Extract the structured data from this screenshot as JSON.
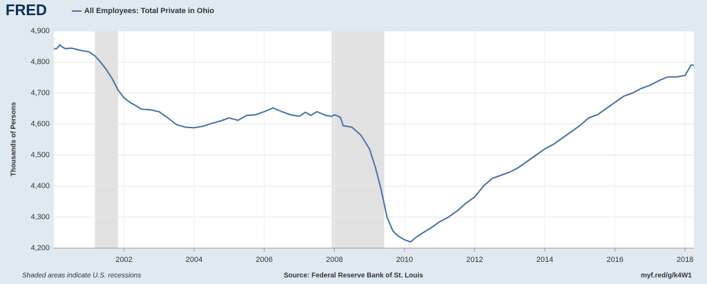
{
  "logo": "FRED",
  "chart_data": {
    "type": "line",
    "title": "All Employees: Total Private in Ohio",
    "ylabel": "Thousands of Persons",
    "note": "Shaded areas indicate U.S. recessions",
    "source": "Source: Federal Reserve Bank of St. Louis",
    "link": "myf.red/g/k4W1",
    "xlim": [
      2000,
      2018.25
    ],
    "xticks": [
      2002,
      2004,
      2006,
      2008,
      2010,
      2012,
      2014,
      2016,
      2018
    ],
    "ylim": [
      4200,
      4900
    ],
    "yticks": [
      {
        "value": 4200,
        "label": "4,200"
      },
      {
        "value": 4300,
        "label": "4,300"
      },
      {
        "value": 4400,
        "label": "4,400"
      },
      {
        "value": 4500,
        "label": "4,500"
      },
      {
        "value": 4600,
        "label": "4,600"
      },
      {
        "value": 4700,
        "label": "4,700"
      },
      {
        "value": 4800,
        "label": "4,800"
      },
      {
        "value": 4900,
        "label": "4,900"
      }
    ],
    "grid": true,
    "recessions": [
      [
        2001.17,
        2001.83
      ],
      [
        2007.92,
        2009.42
      ]
    ],
    "x": [
      2000.0,
      2000.08,
      2000.17,
      2000.25,
      2000.33,
      2000.5,
      2000.67,
      2000.83,
      2001.0,
      2001.17,
      2001.33,
      2001.5,
      2001.67,
      2001.83,
      2002.0,
      2002.17,
      2002.33,
      2002.5,
      2002.75,
      2003.0,
      2003.25,
      2003.5,
      2003.75,
      2004.0,
      2004.25,
      2004.5,
      2004.75,
      2005.0,
      2005.25,
      2005.5,
      2005.75,
      2006.0,
      2006.25,
      2006.5,
      2006.75,
      2007.0,
      2007.17,
      2007.33,
      2007.5,
      2007.75,
      2007.92,
      2008.0,
      2008.17,
      2008.25,
      2008.5,
      2008.75,
      2009.0,
      2009.17,
      2009.33,
      2009.5,
      2009.67,
      2009.83,
      2010.0,
      2010.17,
      2010.33,
      2010.5,
      2010.75,
      2011.0,
      2011.25,
      2011.5,
      2011.75,
      2012.0,
      2012.25,
      2012.5,
      2012.75,
      2013.0,
      2013.25,
      2013.5,
      2013.75,
      2014.0,
      2014.25,
      2014.5,
      2014.75,
      2015.0,
      2015.25,
      2015.5,
      2015.75,
      2016.0,
      2016.25,
      2016.5,
      2016.75,
      2017.0,
      2017.25,
      2017.5,
      2017.75,
      2018.0,
      2018.17,
      2018.25
    ],
    "series": [
      {
        "name": "All Employees: Total Private in Ohio",
        "color": "#4572a7",
        "values": [
          4843,
          4843,
          4855,
          4848,
          4843,
          4845,
          4840,
          4836,
          4833,
          4820,
          4800,
          4775,
          4745,
          4710,
          4685,
          4670,
          4660,
          4648,
          4646,
          4640,
          4620,
          4598,
          4590,
          4588,
          4593,
          4602,
          4610,
          4620,
          4612,
          4628,
          4630,
          4640,
          4652,
          4640,
          4630,
          4625,
          4638,
          4628,
          4640,
          4628,
          4625,
          4630,
          4622,
          4595,
          4590,
          4565,
          4520,
          4460,
          4390,
          4300,
          4255,
          4238,
          4227,
          4220,
          4235,
          4248,
          4265,
          4285,
          4300,
          4320,
          4345,
          4365,
          4400,
          4425,
          4435,
          4445,
          4460,
          4480,
          4500,
          4520,
          4535,
          4555,
          4575,
          4595,
          4620,
          4630,
          4650,
          4670,
          4690,
          4700,
          4715,
          4725,
          4740,
          4752,
          4752,
          4757,
          4790,
          4790
        ]
      }
    ]
  }
}
